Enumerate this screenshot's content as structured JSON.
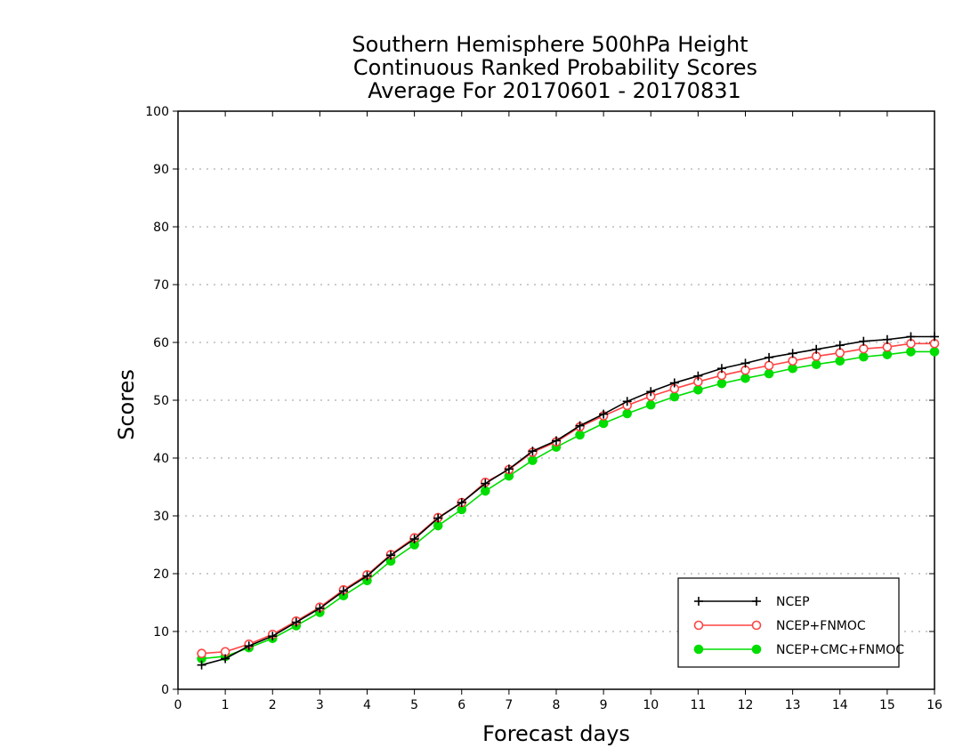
{
  "chart_data": {
    "type": "line",
    "title": [
      "Southern Hemisphere 500hPa Height",
      "Continuous Ranked Probability Scores",
      "Average For 20170601 - 20170831"
    ],
    "xlabel": "Forecast days",
    "ylabel": "Scores",
    "xlim": [
      0,
      16
    ],
    "ylim": [
      0,
      100
    ],
    "xticks": [
      "0",
      "1",
      "2",
      "3",
      "4",
      "5",
      "6",
      "7",
      "8",
      "9",
      "10",
      "11",
      "12",
      "13",
      "14",
      "15",
      "16"
    ],
    "yticks": [
      "0",
      "10",
      "20",
      "30",
      "40",
      "50",
      "60",
      "70",
      "80",
      "90",
      "100"
    ],
    "grid": "horizontal dotted",
    "legend_position": "bottom-right",
    "x": [
      0.5,
      1,
      1.5,
      2,
      2.5,
      3,
      3.5,
      4,
      4.5,
      5,
      5.5,
      6,
      6.5,
      7,
      7.5,
      8,
      8.5,
      9,
      9.5,
      10,
      10.5,
      11,
      11.5,
      12,
      12.5,
      13,
      13.5,
      14,
      14.5,
      15,
      15.5,
      16
    ],
    "series": [
      {
        "name": "NCEP",
        "color": "#000000",
        "marker": "plus",
        "values": [
          4.2,
          5.3,
          7.5,
          9.2,
          11.6,
          14.0,
          17.0,
          19.6,
          23.2,
          26.0,
          29.6,
          32.3,
          35.6,
          38.1,
          41.2,
          43.0,
          45.6,
          47.6,
          49.8,
          51.5,
          53.0,
          54.2,
          55.5,
          56.4,
          57.4,
          58.1,
          58.8,
          59.5,
          60.2,
          60.5,
          61.0,
          61.0
        ]
      },
      {
        "name": "NCEP+FNMOC",
        "color": "#ff4444",
        "marker": "open-circle",
        "values": [
          6.2,
          6.5,
          7.8,
          9.5,
          11.8,
          14.2,
          17.2,
          19.8,
          23.3,
          26.2,
          29.7,
          32.3,
          35.8,
          38.0,
          41.0,
          42.8,
          45.4,
          47.3,
          49.1,
          50.7,
          52.0,
          53.2,
          54.3,
          55.2,
          56.0,
          56.8,
          57.6,
          58.2,
          58.9,
          59.2,
          59.8,
          59.8
        ]
      },
      {
        "name": "NCEP+CMC+FNMOC",
        "color": "#00dd00",
        "marker": "filled-circle",
        "values": [
          5.3,
          5.7,
          7.2,
          8.8,
          11.0,
          13.3,
          16.2,
          18.8,
          22.2,
          25.0,
          28.3,
          31.1,
          34.3,
          36.9,
          39.6,
          41.9,
          44.0,
          46.0,
          47.7,
          49.2,
          50.6,
          51.8,
          52.9,
          53.8,
          54.6,
          55.5,
          56.2,
          56.8,
          57.5,
          57.9,
          58.4,
          58.4
        ]
      }
    ]
  }
}
